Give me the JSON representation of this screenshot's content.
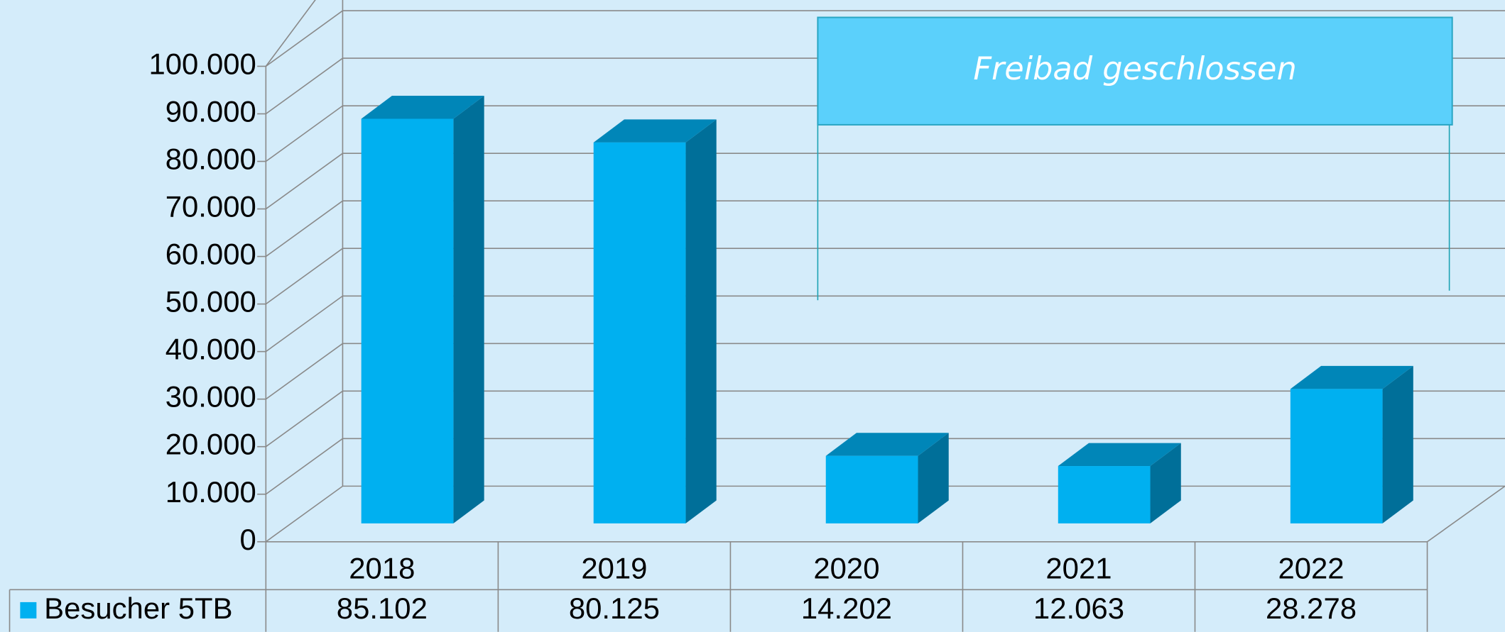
{
  "chart_data": {
    "type": "bar3d",
    "categories": [
      "2018",
      "2019",
      "2020",
      "2021",
      "2022"
    ],
    "series": [
      {
        "name": "Besucher 5TB",
        "color": "#00b0f0",
        "values": [
          85102,
          80125,
          14202,
          12063,
          28278
        ],
        "value_labels": [
          "85.102",
          "80.125",
          "14.202",
          "12.063",
          "28.278"
        ]
      }
    ],
    "ylim": [
      0,
      100000
    ],
    "yticks": [
      0,
      {
        "value": 10000,
        "label": "10.000"
      },
      {
        "value": 20000,
        "label": "20.000"
      },
      {
        "value": 30000,
        "label": "30.000"
      },
      {
        "value": 40000,
        "label": "40.000"
      },
      {
        "value": 50000,
        "label": "50.000"
      },
      {
        "value": 60000,
        "label": "60.000"
      },
      {
        "value": 70000,
        "label": "70.000"
      },
      {
        "value": 80000,
        "label": "80.000"
      },
      {
        "value": 90000,
        "label": "90.000"
      },
      {
        "value": 100000,
        "label": "100.000"
      }
    ],
    "grid": true,
    "annotation": "Freibad geschlossen"
  }
}
